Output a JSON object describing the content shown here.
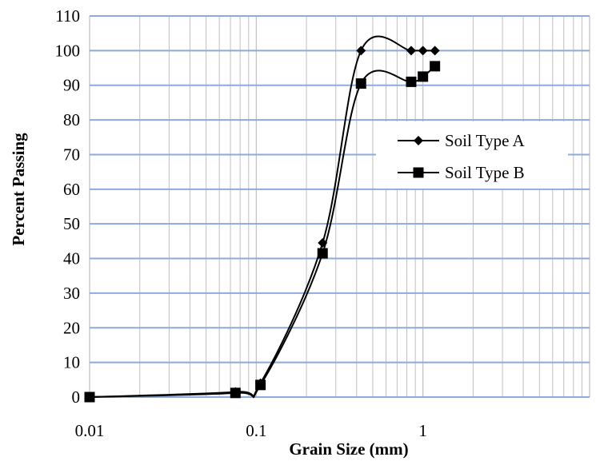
{
  "chart_data": {
    "type": "line",
    "title": "",
    "xlabel": "Grain Size (mm)",
    "ylabel": "Percent Passing",
    "x_scale": "log",
    "xlim": [
      0.01,
      10
    ],
    "ylim": [
      0,
      110
    ],
    "x_ticks": [
      "0.01",
      "0.1",
      "1"
    ],
    "y_ticks": [
      "0",
      "10",
      "20",
      "30",
      "40",
      "50",
      "60",
      "70",
      "80",
      "90",
      "100",
      "110"
    ],
    "grid": true,
    "legend_position": "center-right",
    "series": [
      {
        "name": "Soil Type A",
        "marker": "diamond",
        "color": "#000000",
        "x": [
          0.01,
          0.075,
          0.106,
          0.25,
          0.425,
          0.85,
          1.0,
          1.18
        ],
        "y": [
          0,
          1.5,
          4,
          44.5,
          100,
          100,
          100,
          100
        ]
      },
      {
        "name": "Soil Type B",
        "marker": "square",
        "color": "#000000",
        "x": [
          0.01,
          0.075,
          0.106,
          0.25,
          0.425,
          0.85,
          1.0,
          1.18
        ],
        "y": [
          0,
          1.2,
          3.5,
          41.5,
          90.5,
          91,
          92.5,
          95.5
        ]
      }
    ],
    "colors": {
      "gridline": "#bfbfbf",
      "major_gridline": "#8ea9db",
      "line": "#000000"
    }
  }
}
